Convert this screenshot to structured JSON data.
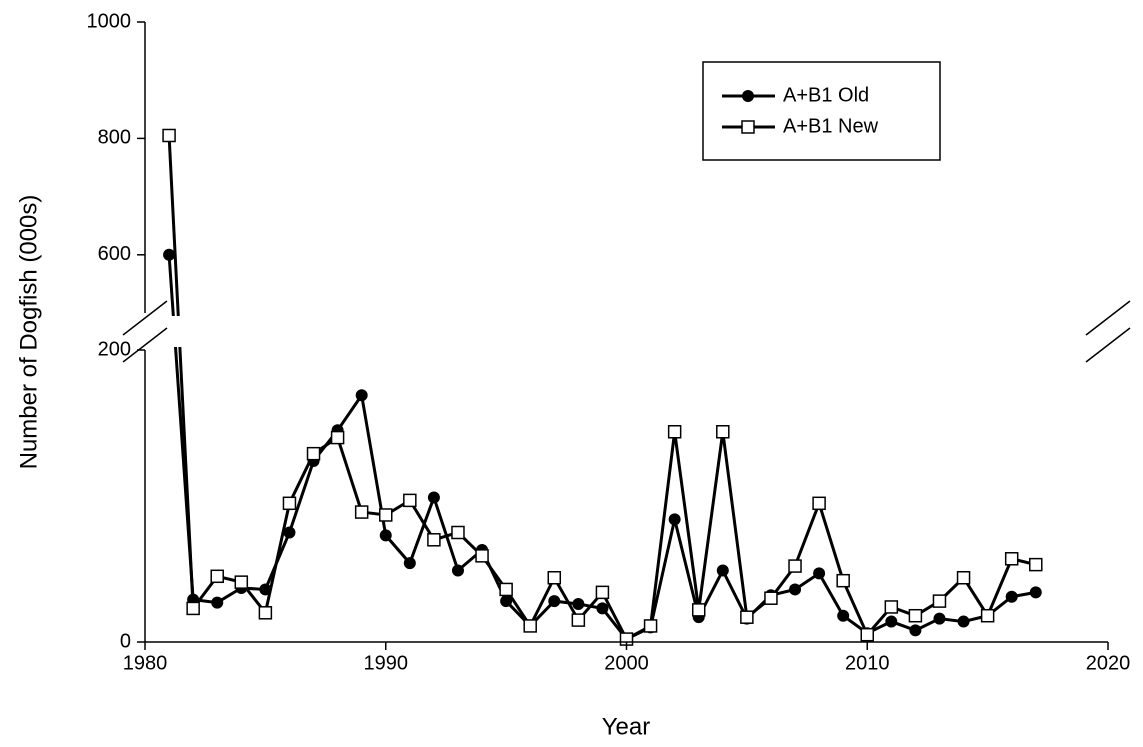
{
  "chart_data": {
    "type": "line",
    "xlabel": "Year",
    "ylabel": "Number of Dogfish (000s)",
    "x": [
      1981,
      1982,
      1983,
      1984,
      1985,
      1986,
      1987,
      1988,
      1989,
      1990,
      1991,
      1992,
      1993,
      1994,
      1995,
      1996,
      1997,
      1998,
      1999,
      2000,
      2001,
      2002,
      2003,
      2004,
      2005,
      2006,
      2007,
      2008,
      2009,
      2010,
      2011,
      2012,
      2013,
      2014,
      2015,
      2016,
      2017
    ],
    "series": [
      {
        "name": "A+B1 Old",
        "color": "#000000",
        "marker": "filled-circle",
        "values": [
          600,
          29,
          27,
          37,
          36,
          75,
          124,
          145,
          169,
          73,
          54,
          99,
          49,
          63,
          28,
          11,
          28,
          26,
          23,
          2,
          10,
          84,
          17,
          49,
          16,
          32,
          36,
          47,
          18,
          6,
          14,
          8,
          16,
          14,
          18,
          31,
          34
        ]
      },
      {
        "name": "A+B1 New",
        "color": "#000000",
        "marker": "open-square",
        "values": [
          805,
          23,
          45,
          41,
          20,
          95,
          129,
          140,
          89,
          87,
          97,
          70,
          75,
          59,
          36,
          11,
          44,
          15,
          34,
          2,
          11,
          144,
          22,
          144,
          17,
          30,
          52,
          95,
          42,
          5,
          24,
          18,
          28,
          44,
          18,
          57,
          53
        ]
      }
    ],
    "xlim": [
      1980,
      2020
    ],
    "xticks": [
      1980,
      1990,
      2000,
      2010,
      2020
    ],
    "ylim": [
      0,
      1000
    ],
    "y_break": [
      200,
      500
    ],
    "yticks": [
      0,
      200,
      600,
      800,
      1000
    ],
    "legend": "upper right"
  }
}
